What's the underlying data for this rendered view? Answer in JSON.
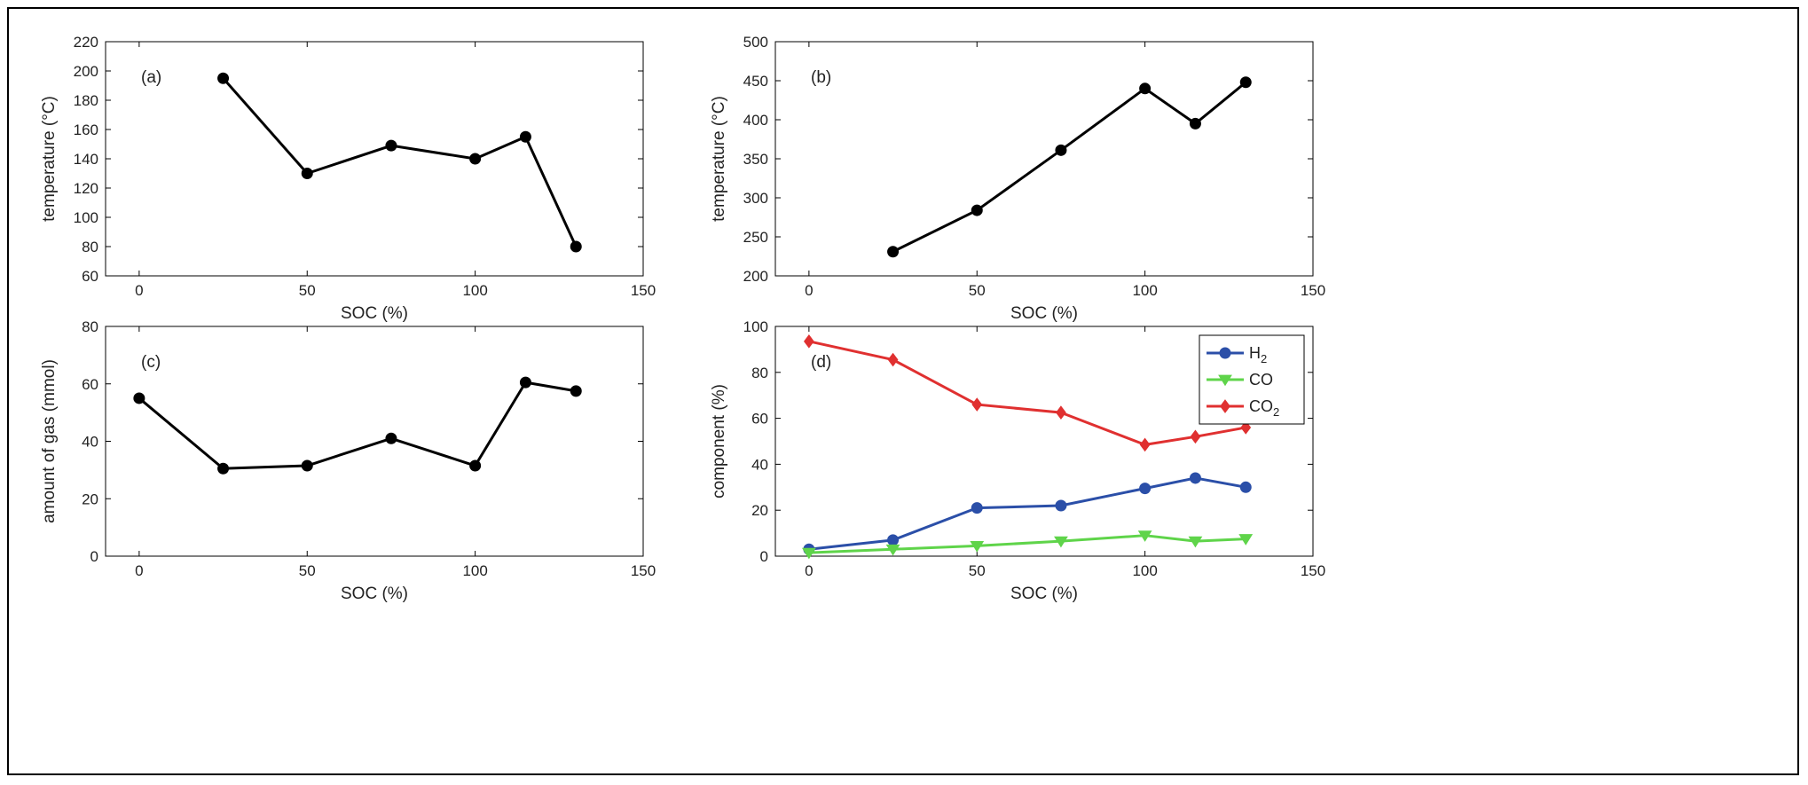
{
  "chart_data": [
    {
      "type": "line",
      "panel_label": "(a)",
      "xlabel": "SOC (%)",
      "ylabel": "temperature (°C)",
      "xlim": [
        -10,
        150
      ],
      "ylim": [
        60,
        220
      ],
      "xticks": [
        0,
        50,
        100,
        150
      ],
      "yticks": [
        60,
        80,
        100,
        120,
        140,
        160,
        180,
        200,
        220
      ],
      "grid": false,
      "series": [
        {
          "x": [
            25,
            50,
            75,
            100,
            115,
            130
          ],
          "y": [
            195,
            130,
            149,
            140,
            155,
            80
          ],
          "color": "#000000",
          "marker": "circle"
        }
      ]
    },
    {
      "type": "line",
      "panel_label": "(b)",
      "xlabel": "SOC (%)",
      "ylabel": "temperature (°C)",
      "xlim": [
        -10,
        150
      ],
      "ylim": [
        200,
        500
      ],
      "xticks": [
        0,
        50,
        100,
        150
      ],
      "yticks": [
        200,
        250,
        300,
        350,
        400,
        450,
        500
      ],
      "grid": false,
      "series": [
        {
          "x": [
            25,
            50,
            75,
            100,
            115,
            130
          ],
          "y": [
            231,
            284,
            361,
            440,
            395,
            448
          ],
          "color": "#000000",
          "marker": "circle"
        }
      ]
    },
    {
      "type": "line",
      "panel_label": "(c)",
      "xlabel": "SOC (%)",
      "ylabel": "amount of gas (mmol)",
      "xlim": [
        -10,
        150
      ],
      "ylim": [
        0,
        80
      ],
      "xticks": [
        0,
        50,
        100,
        150
      ],
      "yticks": [
        0,
        20,
        40,
        60,
        80
      ],
      "grid": false,
      "series": [
        {
          "x": [
            0,
            25,
            50,
            75,
            100,
            115,
            130
          ],
          "y": [
            55,
            30.5,
            31.5,
            41,
            31.5,
            60.5,
            57.5
          ],
          "color": "#000000",
          "marker": "circle"
        }
      ]
    },
    {
      "type": "line",
      "panel_label": "(d)",
      "xlabel": "SOC (%)",
      "ylabel": "component (%)",
      "xlim": [
        -10,
        150
      ],
      "ylim": [
        0,
        100
      ],
      "xticks": [
        0,
        50,
        100,
        150
      ],
      "yticks": [
        0,
        20,
        40,
        60,
        80,
        100
      ],
      "grid": false,
      "legend_position": "top-right",
      "series": [
        {
          "name": "H",
          "name_sub": "2",
          "x": [
            0,
            25,
            50,
            75,
            100,
            115,
            130
          ],
          "y": [
            3,
            7,
            21,
            22,
            29.5,
            34,
            30
          ],
          "color": "#2b4fa8",
          "marker": "circle"
        },
        {
          "name": "CO",
          "name_sub": "",
          "x": [
            0,
            25,
            50,
            75,
            100,
            115,
            130
          ],
          "y": [
            1.5,
            3,
            4.5,
            6.5,
            9,
            6.5,
            7.5
          ],
          "color": "#5fd44a",
          "marker": "triangle-down"
        },
        {
          "name": "CO",
          "name_sub": "2",
          "x": [
            0,
            25,
            50,
            75,
            100,
            115,
            130
          ],
          "y": [
            93.5,
            85.5,
            66,
            62.5,
            48.5,
            52,
            56
          ],
          "color": "#e03030",
          "marker": "diamond"
        }
      ]
    }
  ]
}
